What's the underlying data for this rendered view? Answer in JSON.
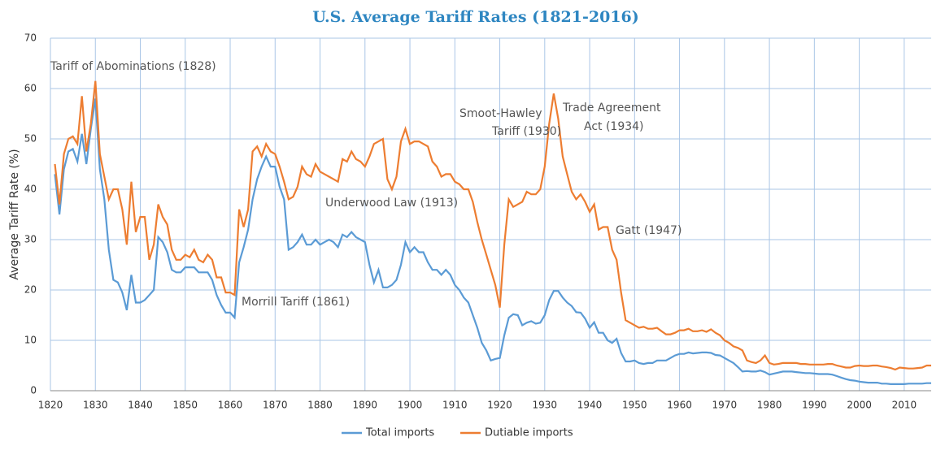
{
  "chart_data": {
    "type": "line",
    "title": "U.S. Average Tariff Rates (1821-2016)",
    "y_label": "Average Tariff Rate (%)",
    "x": [
      1821,
      1822,
      1823,
      1824,
      1825,
      1826,
      1827,
      1828,
      1829,
      1830,
      1831,
      1832,
      1833,
      1834,
      1835,
      1836,
      1837,
      1838,
      1839,
      1840,
      1841,
      1842,
      1843,
      1844,
      1845,
      1846,
      1847,
      1848,
      1849,
      1850,
      1851,
      1852,
      1853,
      1854,
      1855,
      1856,
      1857,
      1858,
      1859,
      1860,
      1861,
      1862,
      1863,
      1864,
      1865,
      1866,
      1867,
      1868,
      1869,
      1870,
      1871,
      1872,
      1873,
      1874,
      1875,
      1876,
      1877,
      1878,
      1879,
      1880,
      1881,
      1882,
      1883,
      1884,
      1885,
      1886,
      1887,
      1888,
      1889,
      1890,
      1891,
      1892,
      1893,
      1894,
      1895,
      1896,
      1897,
      1898,
      1899,
      1900,
      1901,
      1902,
      1903,
      1904,
      1905,
      1906,
      1907,
      1908,
      1909,
      1910,
      1911,
      1912,
      1913,
      1914,
      1915,
      1916,
      1917,
      1918,
      1919,
      1920,
      1921,
      1922,
      1923,
      1924,
      1925,
      1926,
      1927,
      1928,
      1929,
      1930,
      1931,
      1932,
      1933,
      1934,
      1935,
      1936,
      1937,
      1938,
      1939,
      1940,
      1941,
      1942,
      1943,
      1944,
      1945,
      1946,
      1947,
      1948,
      1949,
      1950,
      1951,
      1952,
      1953,
      1954,
      1955,
      1956,
      1957,
      1958,
      1959,
      1960,
      1961,
      1962,
      1963,
      1964,
      1965,
      1966,
      1967,
      1968,
      1969,
      1970,
      1971,
      1972,
      1973,
      1974,
      1975,
      1976,
      1977,
      1978,
      1979,
      1980,
      1981,
      1982,
      1983,
      1984,
      1985,
      1986,
      1987,
      1988,
      1989,
      1990,
      1991,
      1992,
      1993,
      1994,
      1995,
      1996,
      1997,
      1998,
      1999,
      2000,
      2001,
      2002,
      2003,
      2004,
      2005,
      2006,
      2007,
      2008,
      2009,
      2010,
      2011,
      2012,
      2013,
      2014,
      2015,
      2016
    ],
    "series": [
      {
        "name": "Total imports",
        "color": "#5b9bd5",
        "values": [
          43,
          35,
          44,
          47.5,
          48,
          45.5,
          51,
          45,
          52,
          58,
          44,
          38,
          28,
          22,
          21.5,
          19.5,
          16,
          23,
          17.5,
          17.5,
          18,
          19,
          20,
          30.5,
          29.5,
          27.5,
          24,
          23.5,
          23.5,
          24.5,
          24.5,
          24.5,
          23.5,
          23.5,
          23.5,
          22,
          19,
          17,
          15.5,
          15.5,
          14.5,
          25.5,
          28.5,
          32,
          38,
          42,
          44.5,
          46.5,
          44.5,
          44.5,
          40.5,
          38,
          28,
          28.5,
          29.5,
          31,
          29,
          29,
          30,
          29,
          29.5,
          30,
          29.5,
          28.5,
          31,
          30.5,
          31.5,
          30.5,
          30,
          29.5,
          25,
          21.5,
          24,
          20.5,
          20.5,
          21,
          22,
          25,
          29.5,
          27.5,
          28.5,
          27.5,
          27.5,
          25.5,
          24,
          24,
          23,
          24,
          23,
          21,
          20,
          18.5,
          17.5,
          15,
          12.5,
          9.5,
          8,
          6,
          6.3,
          6.5,
          11,
          14.5,
          15.2,
          15,
          13,
          13.5,
          13.8,
          13.3,
          13.5,
          15,
          18,
          19.8,
          19.8,
          18.5,
          17.5,
          16.8,
          15.6,
          15.5,
          14.3,
          12.5,
          13.6,
          11.5,
          11.5,
          10,
          9.5,
          10.3,
          7.5,
          5.8,
          5.8,
          6,
          5.5,
          5.3,
          5.5,
          5.5,
          6,
          6,
          6,
          6.5,
          7,
          7.3,
          7.3,
          7.6,
          7.4,
          7.5,
          7.6,
          7.6,
          7.5,
          7.1,
          7,
          6.5,
          6,
          5.5,
          4.7,
          3.8,
          3.9,
          3.8,
          3.8,
          4,
          3.7,
          3.2,
          3.4,
          3.6,
          3.8,
          3.8,
          3.8,
          3.7,
          3.6,
          3.5,
          3.5,
          3.4,
          3.3,
          3.3,
          3.3,
          3.2,
          2.9,
          2.6,
          2.3,
          2.1,
          2,
          1.8,
          1.7,
          1.6,
          1.6,
          1.6,
          1.4,
          1.4,
          1.3,
          1.3,
          1.3,
          1.3,
          1.4,
          1.4,
          1.4,
          1.4,
          1.5,
          1.5
        ]
      },
      {
        "name": "Dutiable imports",
        "color": "#ed7d31",
        "values": [
          45,
          37,
          47,
          50,
          50.5,
          49,
          58.5,
          47.5,
          53,
          61.5,
          47,
          42.5,
          38,
          40,
          40,
          36,
          29,
          41.5,
          31.5,
          34.5,
          34.5,
          26,
          29,
          37,
          34.5,
          33,
          28,
          26,
          26,
          27,
          26.5,
          28,
          26,
          25.5,
          27,
          26,
          22.5,
          22.5,
          19.5,
          19.5,
          19,
          36,
          32.5,
          36,
          47.5,
          48.5,
          46.5,
          49,
          47.5,
          47,
          44.5,
          41.5,
          38,
          38.5,
          40.5,
          44.5,
          43,
          42.5,
          45,
          43.5,
          43,
          42.5,
          42,
          41.5,
          46,
          45.5,
          47.5,
          46,
          45.5,
          44.5,
          46.5,
          49,
          49.5,
          50,
          42,
          40,
          42.5,
          49.5,
          52,
          49,
          49.5,
          49.5,
          49,
          48.5,
          45.5,
          44.5,
          42.5,
          43,
          43,
          41.5,
          41,
          40,
          40,
          37.5,
          33.5,
          30,
          27,
          24,
          21,
          16.5,
          29,
          38,
          36.5,
          37,
          37.5,
          39.5,
          39,
          39,
          40,
          44.5,
          53,
          59,
          54,
          46.5,
          43,
          39.5,
          38,
          39,
          37.5,
          35.5,
          37,
          32,
          32.5,
          32.5,
          28,
          26,
          19.5,
          14,
          13.5,
          13,
          12.5,
          12.7,
          12.3,
          12.3,
          12.5,
          11.8,
          11.2,
          11.2,
          11.5,
          12,
          12,
          12.3,
          11.8,
          11.8,
          12,
          11.7,
          12.2,
          11.5,
          11,
          10,
          9.5,
          8.8,
          8.5,
          8,
          6,
          5.7,
          5.5,
          6,
          7,
          5.5,
          5.2,
          5.3,
          5.5,
          5.5,
          5.5,
          5.5,
          5.3,
          5.3,
          5.2,
          5.2,
          5.2,
          5.2,
          5.3,
          5.3,
          5,
          4.8,
          4.6,
          4.6,
          4.9,
          5,
          4.9,
          4.9,
          5,
          5,
          4.8,
          4.7,
          4.5,
          4.2,
          4.6,
          4.5,
          4.4,
          4.4,
          4.5,
          4.6,
          5,
          5
        ]
      }
    ],
    "xlim": [
      1820,
      2016
    ],
    "xticks": [
      1820,
      1830,
      1840,
      1850,
      1860,
      1870,
      1880,
      1890,
      1900,
      1910,
      1920,
      1930,
      1940,
      1950,
      1960,
      1970,
      1980,
      1990,
      2000,
      2010
    ],
    "ylim": [
      0,
      70
    ],
    "yticks": [
      0,
      10,
      20,
      30,
      40,
      50,
      60,
      70
    ],
    "grid": true,
    "legend": "bottom",
    "annotations": [
      "Tariff of Abominations (1828)",
      "Morrill Tariff  (1861)",
      "Underwood  Law (1913)",
      "Smoot-Hawley",
      "Tariff (1930)",
      "Trade Agreement",
      "Act (1934)",
      "Gatt (1947)"
    ]
  }
}
